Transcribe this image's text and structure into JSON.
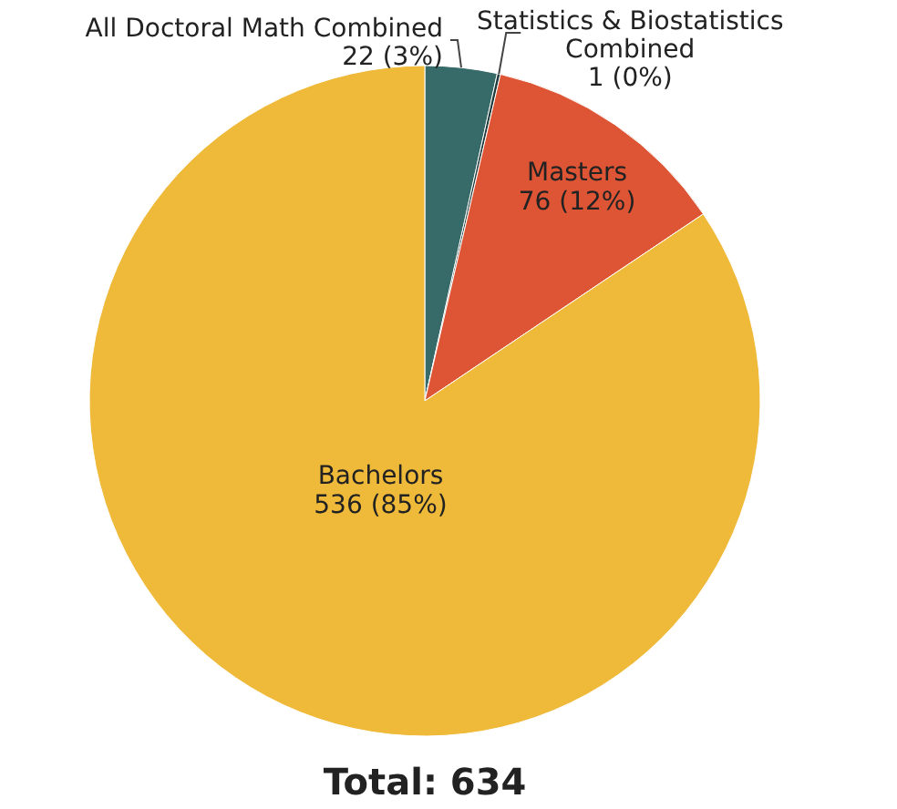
{
  "chart_data": {
    "type": "pie",
    "categories": [
      "All Doctoral Math Combined",
      "Statistics & Biostatistics Combined",
      "Masters",
      "Bachelors"
    ],
    "values": [
      22,
      1,
      76,
      536
    ],
    "colors": [
      "#366b6a",
      "#1f3b3b",
      "#dd5535",
      "#efba3a"
    ],
    "value_labels": [
      "22 (3%)",
      "1 (0%)",
      "76 (12%)",
      "536 (85%)"
    ],
    "annotations": [
      "Total: 634"
    ]
  }
}
